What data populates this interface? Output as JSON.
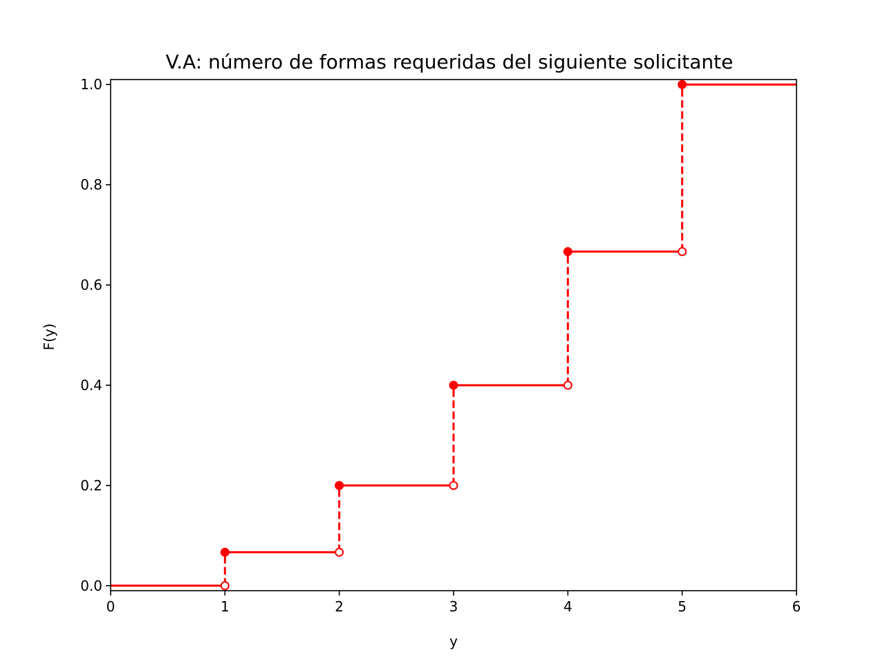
{
  "chart_data": {
    "type": "line",
    "title": "V.A: número de formas requeridas del siguiente solicitante",
    "xlabel": "y",
    "ylabel": "F(y)",
    "xlim": [
      0,
      6
    ],
    "ylim": [
      -0.01,
      1.01
    ],
    "xticks": [
      "0",
      "1",
      "2",
      "3",
      "4",
      "5",
      "6"
    ],
    "yticks": [
      "0.0",
      "0.2",
      "0.4",
      "0.6",
      "0.8",
      "1.0"
    ],
    "grid": false,
    "series": [
      {
        "style": "step-cdf",
        "color": "#ff0000",
        "steps": [
          {
            "x_start": 0,
            "x_end": 1,
            "y": 0.0
          },
          {
            "x_start": 1,
            "x_end": 2,
            "y": 0.0667
          },
          {
            "x_start": 2,
            "x_end": 3,
            "y": 0.2
          },
          {
            "x_start": 3,
            "x_end": 4,
            "y": 0.4
          },
          {
            "x_start": 4,
            "x_end": 5,
            "y": 0.6667
          },
          {
            "x_start": 5,
            "x_end": 6,
            "y": 1.0
          }
        ],
        "jumps": [
          {
            "x": 1,
            "from": 0.0,
            "to": 0.0667
          },
          {
            "x": 2,
            "from": 0.0667,
            "to": 0.2
          },
          {
            "x": 3,
            "from": 0.2,
            "to": 0.4
          },
          {
            "x": 4,
            "from": 0.4,
            "to": 0.6667
          },
          {
            "x": 5,
            "from": 0.6667,
            "to": 1.0
          }
        ]
      }
    ]
  }
}
